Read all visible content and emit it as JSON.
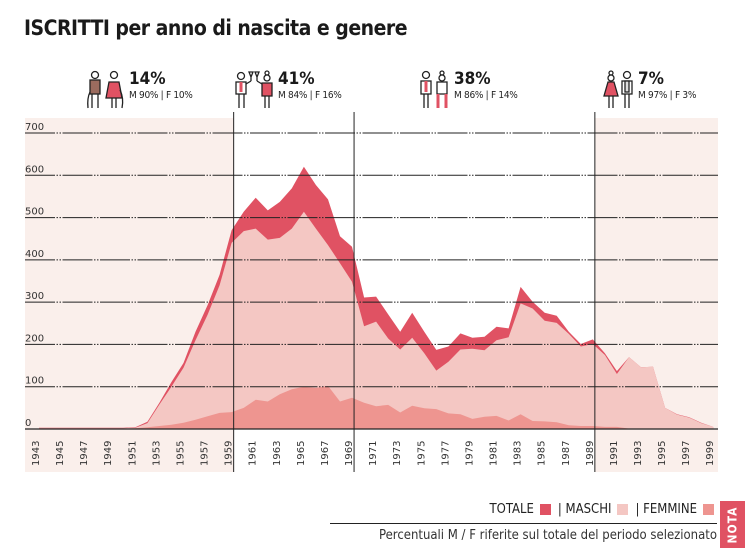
{
  "title": "ISCRITTI per anno di nascita e genere",
  "groups": [
    {
      "icon": "elderly-couple-icon",
      "pct": "14%",
      "mf": "M 90% | F 10%"
    },
    {
      "icon": "adults-toasting-icon",
      "pct": "41%",
      "mf": "M 84% | F 16%"
    },
    {
      "icon": "young-adults-icon",
      "pct": "38%",
      "mf": "M 86% | F 14%"
    },
    {
      "icon": "youth-couple-icon",
      "pct": "7%",
      "mf": "M 97% | F 3%"
    }
  ],
  "legend": {
    "totale": "TOTALE",
    "maschi": "| MASCHI",
    "femmine": "| FEMMINE"
  },
  "note": "Percentuali M / F riferite sul totale del periodo selezionato",
  "nota_tab": "NOTA",
  "colors": {
    "totale": "#e05263",
    "maschi": "#f4c7c3",
    "femmine": "#ee9590",
    "shade": "#faefeb"
  },
  "chart_data": {
    "type": "area",
    "title": "ISCRITTI per anno di nascita e genere",
    "xlabel": "",
    "ylabel": "",
    "ylim": [
      0,
      700
    ],
    "yticks": [
      0,
      100,
      200,
      300,
      400,
      500,
      600,
      700
    ],
    "x": [
      1943,
      1944,
      1945,
      1946,
      1947,
      1948,
      1949,
      1950,
      1951,
      1952,
      1953,
      1954,
      1955,
      1956,
      1957,
      1958,
      1959,
      1960,
      1961,
      1962,
      1963,
      1964,
      1965,
      1966,
      1967,
      1968,
      1969,
      1970,
      1971,
      1972,
      1973,
      1974,
      1975,
      1976,
      1977,
      1978,
      1979,
      1980,
      1981,
      1982,
      1983,
      1984,
      1985,
      1986,
      1987,
      1988,
      1989,
      1990,
      1991,
      1992,
      1993,
      1994,
      1995,
      1996,
      1997,
      1998,
      1999
    ],
    "xtick_labels": [
      "1943",
      "1945",
      "1947",
      "1949",
      "1951",
      "1953",
      "1955",
      "1957",
      "1959",
      "1961",
      "1963",
      "1965",
      "1967",
      "1969",
      "1971",
      "1973",
      "1975",
      "1977",
      "1979",
      "1981",
      "1983",
      "1985",
      "1987",
      "1989",
      "1991",
      "1993",
      "1995",
      "1997",
      "1999"
    ],
    "period_breaks": [
      1959.5,
      1969.5,
      1989.5
    ],
    "series": [
      {
        "name": "TOTALE",
        "values": [
          3,
          3,
          3,
          3,
          3,
          3,
          3,
          3,
          4,
          17,
          62,
          111,
          156,
          230,
          293,
          365,
          470,
          514,
          547,
          517,
          537,
          569,
          620,
          577,
          543,
          456,
          431,
          311,
          313,
          271,
          230,
          275,
          230,
          187,
          195,
          226,
          216,
          218,
          242,
          238,
          336,
          301,
          275,
          268,
          230,
          201,
          212,
          179,
          137,
          170,
          146,
          147,
          50,
          35,
          28,
          15,
          5
        ]
      },
      {
        "name": "MASCHI",
        "values": [
          2,
          2,
          2,
          2,
          2,
          2,
          2,
          2,
          3,
          14,
          58,
          100,
          145,
          210,
          270,
          340,
          440,
          468,
          474,
          448,
          452,
          474,
          514,
          474,
          435,
          392,
          348,
          243,
          254,
          214,
          188,
          216,
          179,
          138,
          159,
          188,
          190,
          186,
          210,
          217,
          297,
          285,
          256,
          251,
          225,
          195,
          201,
          175,
          130,
          170,
          146,
          147,
          50,
          34,
          27,
          14,
          5
        ]
      },
      {
        "name": "FEMMINE",
        "values": [
          1,
          1,
          1,
          1,
          1,
          1,
          1,
          1,
          2,
          4,
          7,
          10,
          15,
          22,
          30,
          38,
          40,
          50,
          69,
          65,
          82,
          94,
          100,
          97,
          102,
          65,
          74,
          62,
          54,
          57,
          39,
          55,
          49,
          47,
          37,
          35,
          24,
          29,
          31,
          20,
          35,
          19,
          18,
          16,
          9,
          7,
          7,
          5,
          5,
          1,
          0,
          0,
          0,
          0,
          0,
          0,
          0
        ]
      }
    ]
  }
}
